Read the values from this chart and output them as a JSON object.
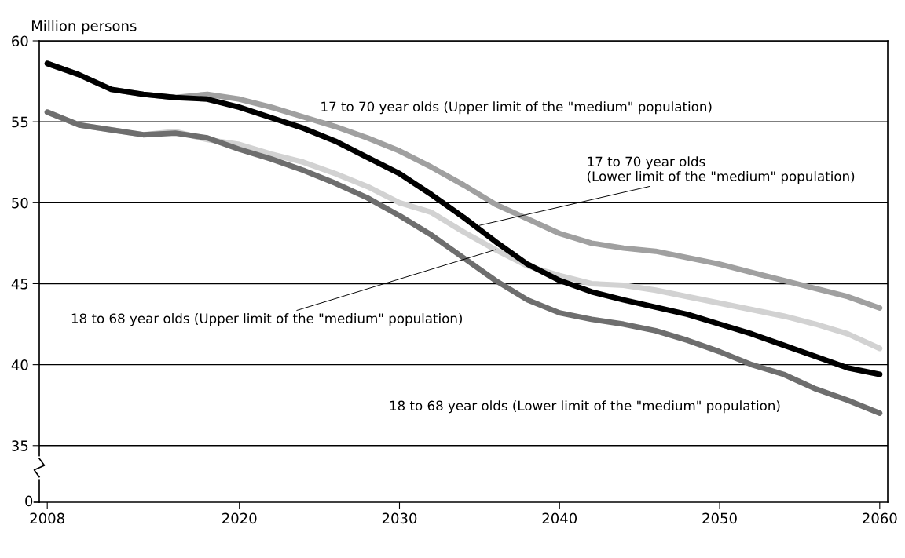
{
  "chart_data": {
    "type": "line",
    "ylabel": "Million persons",
    "x": [
      2008,
      2010,
      2012,
      2014,
      2016,
      2018,
      2020,
      2022,
      2024,
      2026,
      2028,
      2030,
      2032,
      2034,
      2036,
      2038,
      2040,
      2042,
      2044,
      2046,
      2048,
      2050,
      2052,
      2054,
      2056,
      2058,
      2060
    ],
    "series": [
      {
        "color": "#a0a0a0",
        "values": [
          58.6,
          57.9,
          57.0,
          56.7,
          56.5,
          56.7,
          56.4,
          55.9,
          55.3,
          54.7,
          54.0,
          53.2,
          52.2,
          51.1,
          49.9,
          49.0,
          48.1,
          47.5,
          47.2,
          47.0,
          46.6,
          46.2,
          45.7,
          45.2,
          44.7,
          44.2,
          43.5
        ]
      },
      {
        "color": "#d2d2d2",
        "values": [
          55.6,
          54.8,
          54.5,
          54.2,
          54.4,
          53.9,
          53.6,
          53.0,
          52.5,
          51.8,
          51.0,
          50.0,
          49.4,
          48.2,
          47.1,
          46.1,
          45.5,
          45.0,
          44.9,
          44.6,
          44.2,
          43.8,
          43.4,
          43.0,
          42.5,
          41.9,
          41.0
        ]
      },
      {
        "color": "#6e6e6e",
        "values": [
          55.6,
          54.8,
          54.5,
          54.2,
          54.3,
          54.0,
          53.3,
          52.7,
          52.0,
          51.2,
          50.3,
          49.2,
          48.0,
          46.6,
          45.2,
          44.0,
          43.2,
          42.8,
          42.5,
          42.1,
          41.5,
          40.8,
          40.0,
          39.4,
          38.5,
          37.8,
          37.0
        ]
      },
      {
        "color": "#000000",
        "values": [
          58.6,
          57.9,
          57.0,
          56.7,
          56.5,
          56.4,
          55.9,
          55.25,
          54.6,
          53.8,
          52.8,
          51.8,
          50.5,
          49.1,
          47.6,
          46.2,
          45.2,
          44.5,
          44.0,
          43.55,
          43.1,
          42.5,
          41.9,
          41.2,
          40.5,
          39.8,
          39.4
        ]
      }
    ],
    "xlim": [
      2007.5,
      2060.5
    ],
    "xticks": [
      2008,
      2020,
      2030,
      2040,
      2050,
      2060
    ],
    "ylim": [
      31.5,
      60
    ],
    "yticks": [
      35,
      40,
      45,
      50,
      55,
      60
    ],
    "grid": "y",
    "legend": false,
    "marker": "none",
    "line_style": "solid",
    "annotations": [
      "17 to 70 year olds (Upper limit of the \"medium\" population)",
      {
        "text": "17 to 70 year olds\n(Lower limit of the \"medium\" population)",
        "x": 2035,
        "y": 48.6
      },
      {
        "text": "18 to 68 year olds (Upper limit of the \"medium\" population)",
        "x": 2036,
        "y": 47.1
      },
      "18 to 68 year olds (Lower limit of the \"medium\" population)",
      "0"
    ]
  }
}
